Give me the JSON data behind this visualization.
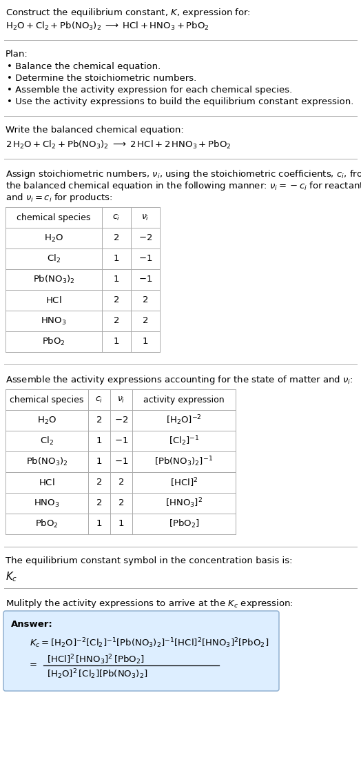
{
  "bg_color": "#ffffff",
  "text_color": "#000000",
  "table_border_color": "#aaaaaa",
  "answer_box_color": "#ddeeff",
  "answer_box_border": "#88aacc",
  "font_size": 9.5,
  "figsize": [
    5.24,
    11.01
  ],
  "dpi": 100,
  "table1_rows": [
    [
      "$\\mathrm{H_2O}$",
      "2",
      "$-2$"
    ],
    [
      "$\\mathrm{Cl_2}$",
      "1",
      "$-1$"
    ],
    [
      "$\\mathrm{Pb(NO_3)_2}$",
      "1",
      "$-1$"
    ],
    [
      "$\\mathrm{HCl}$",
      "2",
      "2"
    ],
    [
      "$\\mathrm{HNO_3}$",
      "2",
      "2"
    ],
    [
      "$\\mathrm{PbO_2}$",
      "1",
      "1"
    ]
  ],
  "table2_rows": [
    [
      "$\\mathrm{H_2O}$",
      "2",
      "$-2$",
      "$[\\mathrm{H_2O}]^{-2}$"
    ],
    [
      "$\\mathrm{Cl_2}$",
      "1",
      "$-1$",
      "$[\\mathrm{Cl_2}]^{-1}$"
    ],
    [
      "$\\mathrm{Pb(NO_3)_2}$",
      "1",
      "$-1$",
      "$[\\mathrm{Pb(NO_3)_2}]^{-1}$"
    ],
    [
      "$\\mathrm{HCl}$",
      "2",
      "2",
      "$[\\mathrm{HCl}]^2$"
    ],
    [
      "$\\mathrm{HNO_3}$",
      "2",
      "2",
      "$[\\mathrm{HNO_3}]^2$"
    ],
    [
      "$\\mathrm{PbO_2}$",
      "1",
      "1",
      "$[\\mathrm{PbO_2}]$"
    ]
  ]
}
